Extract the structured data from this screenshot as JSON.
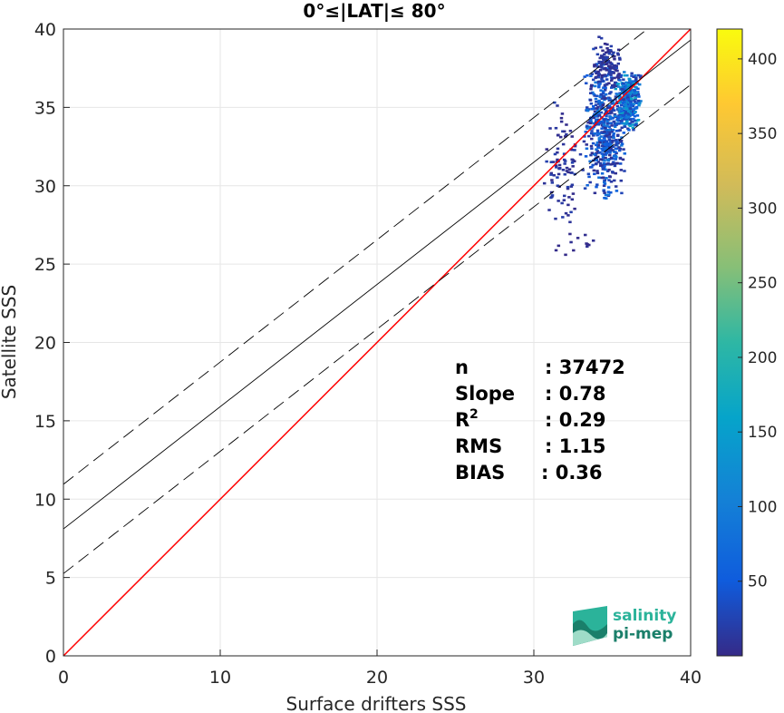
{
  "chart_data": {
    "type": "heatmap",
    "title": "0°≤|LAT|≤ 80°",
    "xlabel": "Surface drifters SSS",
    "ylabel": "Satellite SSS",
    "xlim": [
      0,
      40
    ],
    "ylim": [
      0,
      40
    ],
    "xticks": [
      "0",
      "10",
      "20",
      "30",
      "40"
    ],
    "yticks": [
      "0",
      "5",
      "10",
      "15",
      "20",
      "25",
      "30",
      "35",
      "40"
    ],
    "grid": true,
    "colorbar": {
      "colormap": "parula",
      "range": [
        0,
        420
      ],
      "ticks": [
        "50",
        "100",
        "150",
        "200",
        "250",
        "300",
        "350",
        "400"
      ]
    },
    "lines": [
      {
        "style": "red",
        "slope": 1.0,
        "intercept": 0.0,
        "color": "#ff0000"
      },
      {
        "style": "solid-black",
        "slope": 0.78,
        "intercept": 8.1,
        "color": "#000000"
      },
      {
        "style": "dashed-black",
        "slope": 0.78,
        "intercept": 10.95,
        "color": "#000000"
      },
      {
        "style": "dashed-black",
        "slope": 0.78,
        "intercept": 5.25,
        "color": "#000000"
      }
    ],
    "density_clusters": [
      {
        "x": [
          33.0,
          35.8
        ],
        "y": [
          29.0,
          38.0
        ],
        "count": 520,
        "level": [
          5,
          95
        ]
      },
      {
        "x": [
          35.0,
          36.8
        ],
        "y": [
          33.5,
          37.5
        ],
        "count": 320,
        "level": [
          20,
          170
        ]
      },
      {
        "x": [
          30.5,
          33.0
        ],
        "y": [
          27.0,
          36.0
        ],
        "count": 90,
        "level": [
          2,
          25
        ]
      },
      {
        "x": [
          33.5,
          35.5
        ],
        "y": [
          36.0,
          39.8
        ],
        "count": 120,
        "level": [
          2,
          30
        ]
      },
      {
        "x": [
          31.0,
          34.0
        ],
        "y": [
          24.2,
          29.0
        ],
        "count": 14,
        "level": [
          1,
          8
        ]
      }
    ],
    "stats": [
      {
        "label": "n",
        "value": ": 37472"
      },
      {
        "label": "Slope",
        "value": ": 0.78"
      },
      {
        "label": "R",
        "sup": "2",
        "value": ": 0.29"
      },
      {
        "label": "RMS",
        "value": ": 1.15"
      },
      {
        "label": "BIAS",
        "value": ": 0.36"
      }
    ]
  },
  "logo": {
    "line1": "salinity",
    "line2": "pi-mep",
    "color_primary": "#2bb39a",
    "color_secondary": "#1a7f6a"
  }
}
